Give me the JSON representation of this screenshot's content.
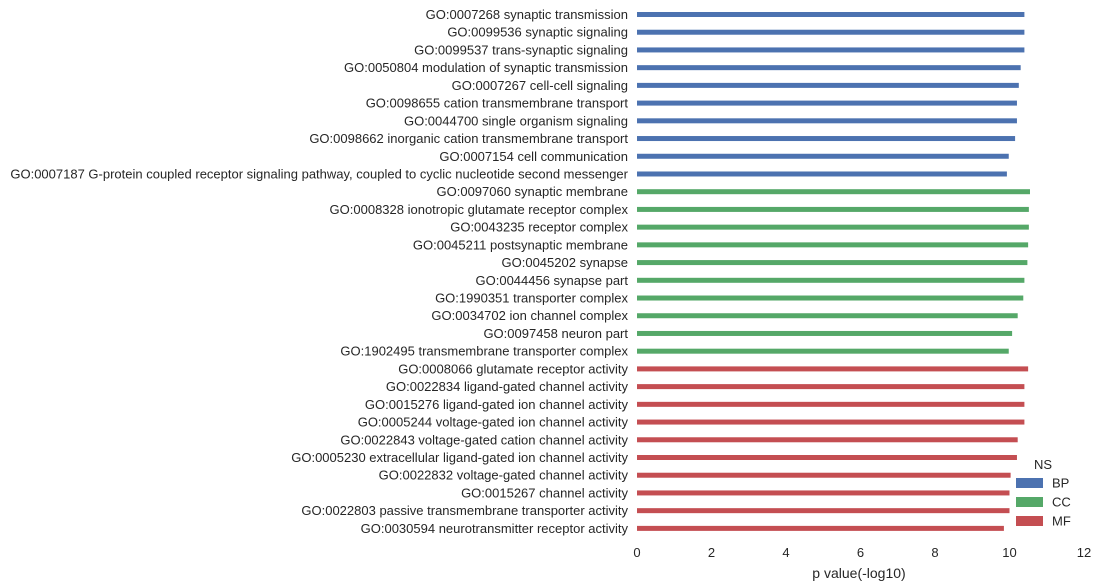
{
  "chart_data": {
    "type": "bar",
    "orientation": "horizontal",
    "xlabel": "p value(-log10)",
    "ylabel": "",
    "xlim": [
      0,
      12
    ],
    "xticks": [
      "0",
      "2",
      "4",
      "6",
      "8",
      "10",
      "12"
    ],
    "grid": false,
    "legend": {
      "title": "NS",
      "placement": "bottom-right",
      "entries": [
        {
          "name": "BP",
          "color": "#4c72b0"
        },
        {
          "name": "CC",
          "color": "#55a868"
        },
        {
          "name": "MF",
          "color": "#c44e52"
        }
      ]
    },
    "bars": [
      {
        "label": "GO:0007268 synaptic transmission",
        "value": 10.4,
        "group": "BP"
      },
      {
        "label": "GO:0099536 synaptic signaling",
        "value": 10.4,
        "group": "BP"
      },
      {
        "label": "GO:0099537 trans-synaptic signaling",
        "value": 10.4,
        "group": "BP"
      },
      {
        "label": "GO:0050804 modulation of synaptic transmission",
        "value": 10.3,
        "group": "BP"
      },
      {
        "label": "GO:0007267 cell-cell signaling",
        "value": 10.25,
        "group": "BP"
      },
      {
        "label": "GO:0098655 cation transmembrane transport",
        "value": 10.2,
        "group": "BP"
      },
      {
        "label": "GO:0044700 single organism signaling",
        "value": 10.2,
        "group": "BP"
      },
      {
        "label": "GO:0098662 inorganic cation transmembrane transport",
        "value": 10.15,
        "group": "BP"
      },
      {
        "label": "GO:0007154 cell communication",
        "value": 9.98,
        "group": "BP"
      },
      {
        "label": "GO:0007187 G-protein coupled receptor signaling pathway, coupled to cyclic nucleotide second messenger",
        "value": 9.93,
        "group": "BP"
      },
      {
        "label": "GO:0097060 synaptic membrane",
        "value": 10.55,
        "group": "CC"
      },
      {
        "label": "GO:0008328 ionotropic glutamate receptor complex",
        "value": 10.52,
        "group": "CC"
      },
      {
        "label": "GO:0043235 receptor complex",
        "value": 10.52,
        "group": "CC"
      },
      {
        "label": "GO:0045211 postsynaptic membrane",
        "value": 10.5,
        "group": "CC"
      },
      {
        "label": "GO:0045202 synapse",
        "value": 10.48,
        "group": "CC"
      },
      {
        "label": "GO:0044456 synapse part",
        "value": 10.4,
        "group": "CC"
      },
      {
        "label": "GO:1990351 transporter complex",
        "value": 10.37,
        "group": "CC"
      },
      {
        "label": "GO:0034702 ion channel complex",
        "value": 10.22,
        "group": "CC"
      },
      {
        "label": "GO:0097458 neuron part",
        "value": 10.07,
        "group": "CC"
      },
      {
        "label": "GO:1902495 transmembrane transporter complex",
        "value": 9.98,
        "group": "CC"
      },
      {
        "label": "GO:0008066 glutamate receptor activity",
        "value": 10.5,
        "group": "MF"
      },
      {
        "label": "GO:0022834 ligand-gated channel activity",
        "value": 10.4,
        "group": "MF"
      },
      {
        "label": "GO:0015276 ligand-gated ion channel activity",
        "value": 10.4,
        "group": "MF"
      },
      {
        "label": "GO:0005244 voltage-gated ion channel activity",
        "value": 10.4,
        "group": "MF"
      },
      {
        "label": "GO:0022843 voltage-gated cation channel activity",
        "value": 10.22,
        "group": "MF"
      },
      {
        "label": "GO:0005230 extracellular ligand-gated ion channel activity",
        "value": 10.2,
        "group": "MF"
      },
      {
        "label": "GO:0022832 voltage-gated channel activity",
        "value": 10.03,
        "group": "MF"
      },
      {
        "label": "GO:0015267 channel activity",
        "value": 10.0,
        "group": "MF"
      },
      {
        "label": "GO:0022803 passive transmembrane transporter activity",
        "value": 10.0,
        "group": "MF"
      },
      {
        "label": "GO:0030594 neurotransmitter receptor activity",
        "value": 9.85,
        "group": "MF"
      }
    ]
  }
}
